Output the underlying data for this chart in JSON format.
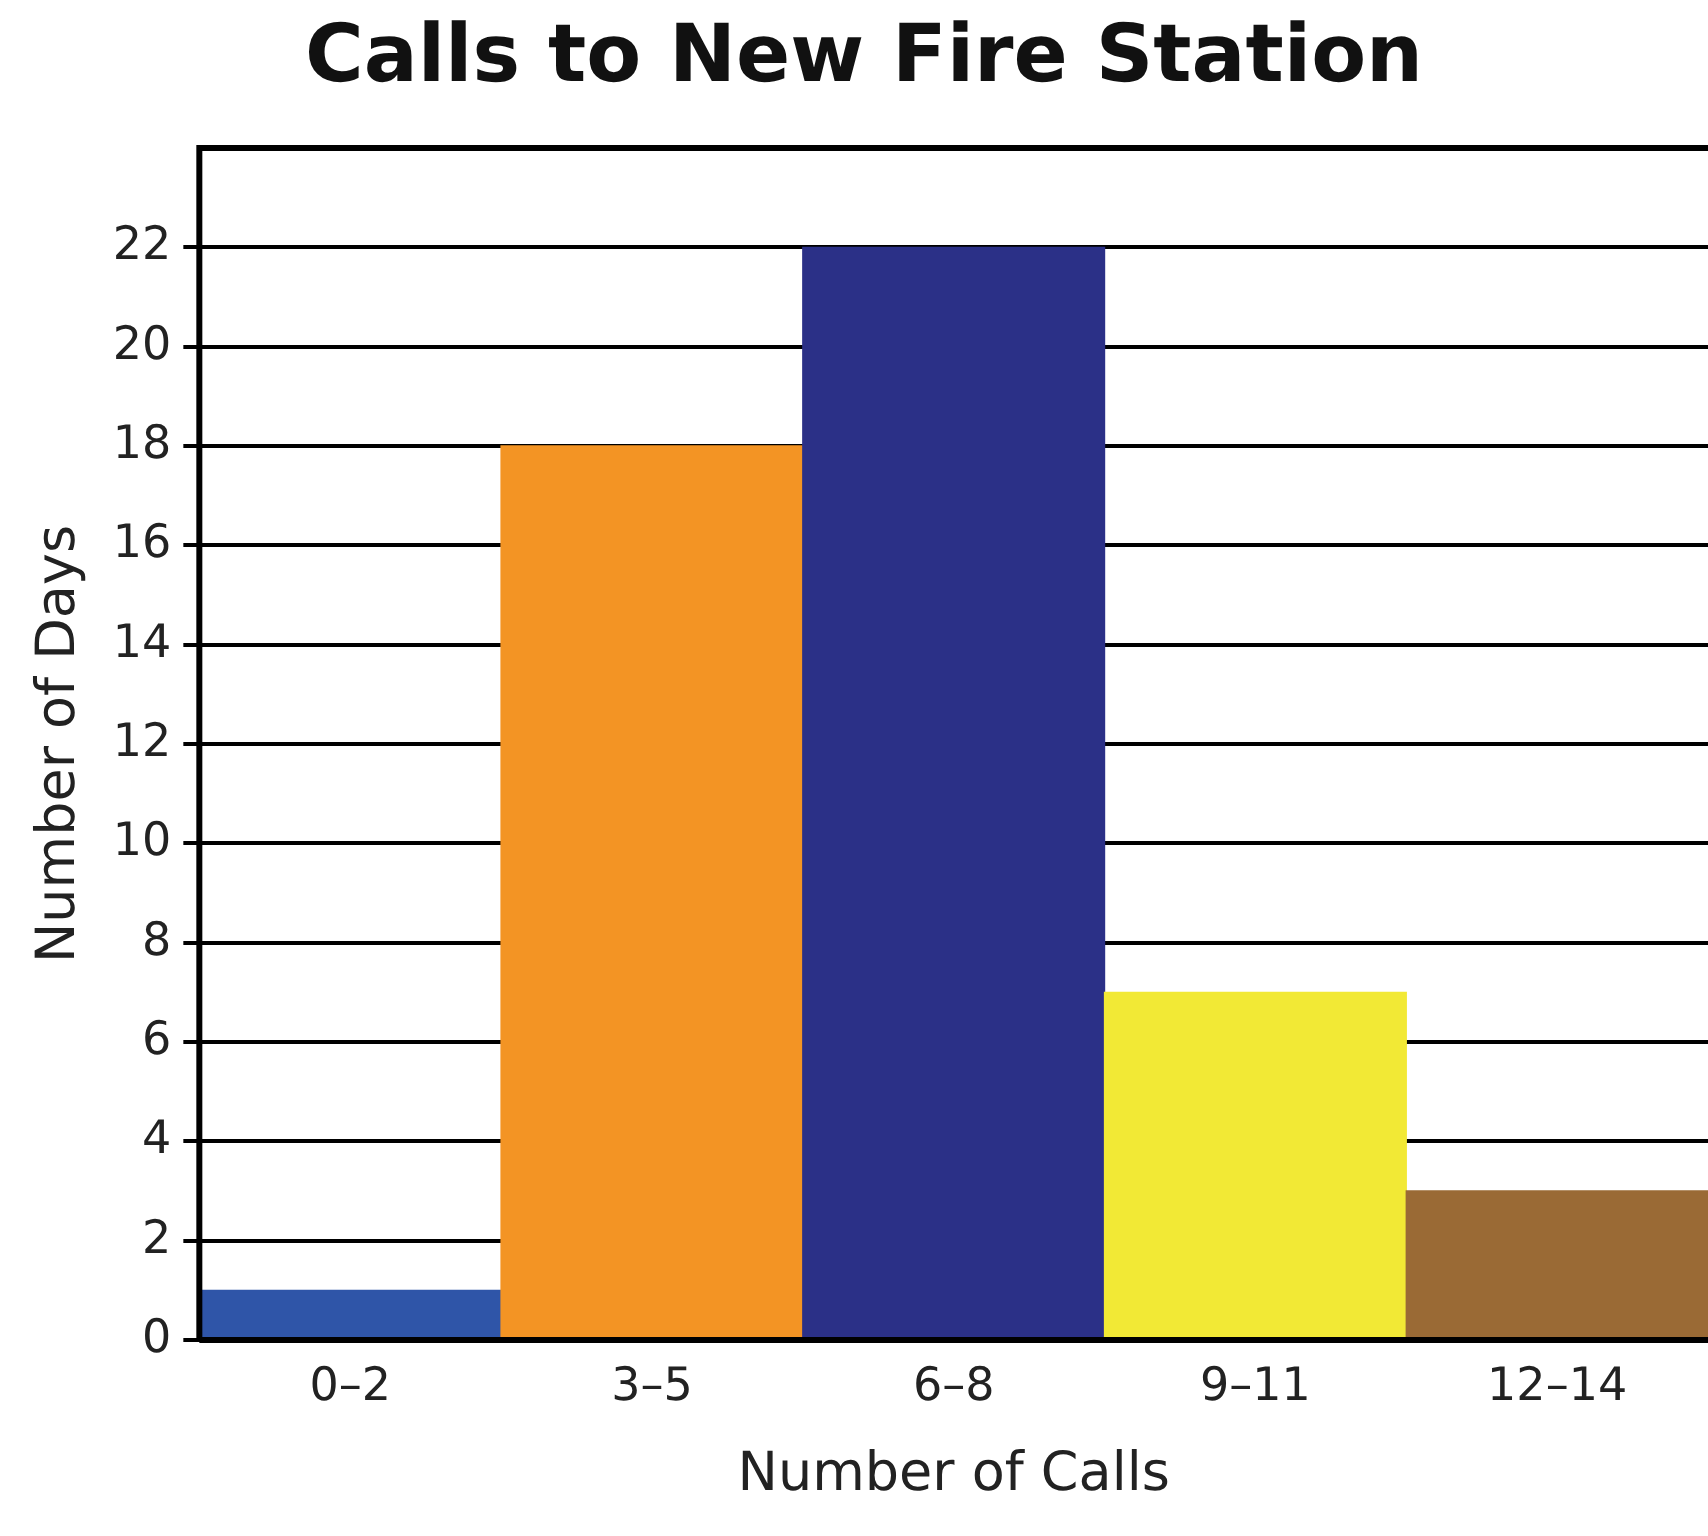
{
  "chart_data": {
    "type": "bar",
    "title": "Calls to New Fire Station",
    "xlabel": "Number of Calls",
    "ylabel": "Number of Days",
    "categories": [
      "0–2",
      "3–5",
      "6–8",
      "9–11",
      "12–14"
    ],
    "values": [
      1,
      18,
      22,
      7,
      3
    ],
    "colors": [
      "#2f55a8",
      "#f39424",
      "#2b3087",
      "#f2e935",
      "#9a6a35"
    ],
    "ylim": [
      0,
      24
    ],
    "yticks": [
      0,
      2,
      4,
      6,
      8,
      10,
      12,
      14,
      16,
      18,
      20,
      22
    ],
    "grid": "y",
    "legend": false
  }
}
